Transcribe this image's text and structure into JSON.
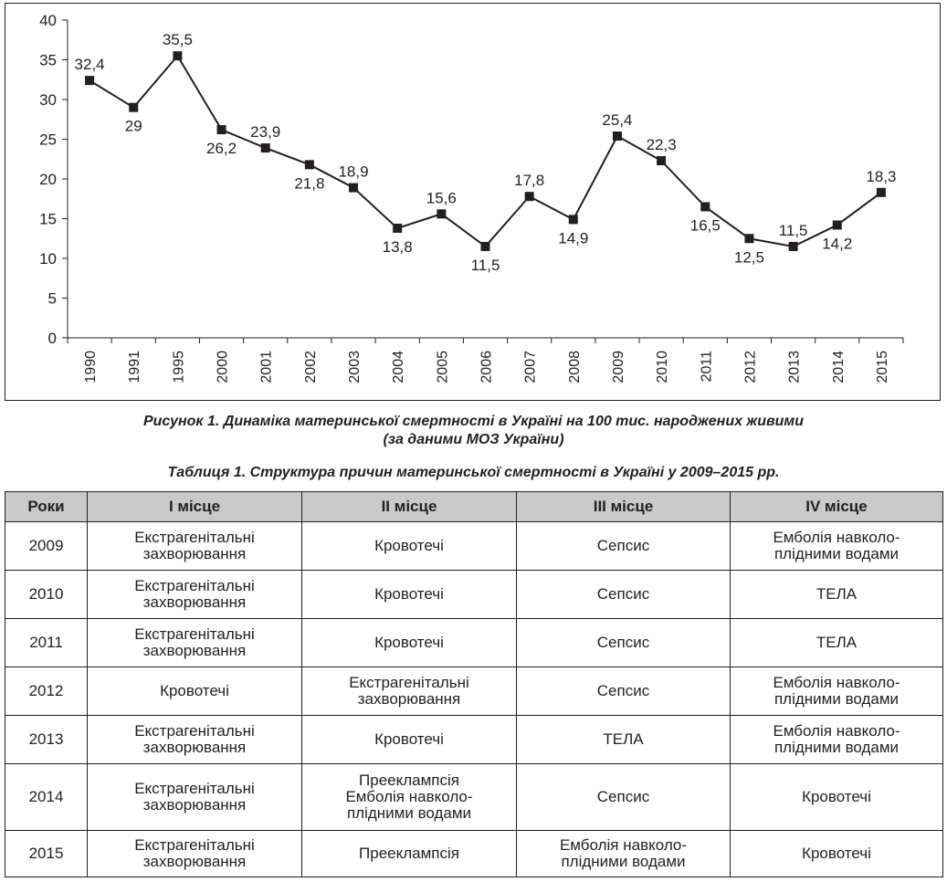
{
  "chart_data": {
    "type": "line",
    "categories": [
      "1990",
      "1991",
      "1995",
      "2000",
      "2001",
      "2002",
      "2003",
      "2004",
      "2005",
      "2006",
      "2007",
      "2008",
      "2009",
      "2010",
      "2011",
      "2012",
      "2013",
      "2014",
      "2015"
    ],
    "values": [
      32.4,
      29,
      35.5,
      26.2,
      23.9,
      21.8,
      18.9,
      13.8,
      15.6,
      11.5,
      17.8,
      14.9,
      25.4,
      22.3,
      16.5,
      12.5,
      11.5,
      14.2,
      18.3
    ],
    "data_labels": [
      "32,4",
      "29",
      "35,5",
      "26,2",
      "23,9",
      "21,8",
      "18,9",
      "13,8",
      "15,6",
      "11,5",
      "17,8",
      "14,9",
      "25,4",
      "22,3",
      "16,5",
      "12,5",
      "11,5",
      "14,2",
      "18,3"
    ],
    "label_position": [
      "above",
      "below",
      "above",
      "below",
      "above",
      "below",
      "above",
      "below",
      "above",
      "below",
      "above",
      "below",
      "above",
      "above",
      "below",
      "below",
      "above",
      "below",
      "above"
    ],
    "yticks": [
      "0",
      "5",
      "10",
      "15",
      "20",
      "25",
      "30",
      "35",
      "40"
    ],
    "ylim": [
      0,
      40
    ],
    "grid": false,
    "legend": "none",
    "title": "",
    "xlabel": "",
    "ylabel": "",
    "colors": {
      "line": "#231f20",
      "marker": "#231f20"
    }
  },
  "figure_caption": {
    "line1": "Рисунок 1.  Динаміка материнської смертності в Україні на 100 тис. народжених живими",
    "line2": "(за даними МОЗ України)"
  },
  "table": {
    "caption": "Таблиця 1.  Структура причин материнської смертності в Україні у 2009–2015 рр.",
    "header_color": "#c9c9c9",
    "headers": [
      "Роки",
      "І місце",
      "ІІ місце",
      "ІІІ місце",
      "IV місце"
    ],
    "rows": [
      {
        "cells": [
          [
            "2009"
          ],
          [
            "Екстрагенітальні",
            "захворювання"
          ],
          [
            "Кровотечі"
          ],
          [
            "Сепсис"
          ],
          [
            "Емболія навколо-",
            "плідними водами"
          ]
        ]
      },
      {
        "cells": [
          [
            "2010"
          ],
          [
            "Екстрагенітальні",
            "захворювання"
          ],
          [
            "Кровотечі"
          ],
          [
            "Сепсис"
          ],
          [
            "ТЕЛА"
          ]
        ]
      },
      {
        "cells": [
          [
            "2011"
          ],
          [
            "Екстрагенітальні",
            "захворювання"
          ],
          [
            "Кровотечі"
          ],
          [
            "Сепсис"
          ],
          [
            "ТЕЛА"
          ]
        ]
      },
      {
        "cells": [
          [
            "2012"
          ],
          [
            "Кровотечі"
          ],
          [
            "Екстрагенітальні",
            "захворювання"
          ],
          [
            "Сепсис"
          ],
          [
            "Емболія навколо-",
            "плідними водами"
          ]
        ]
      },
      {
        "cells": [
          [
            "2013"
          ],
          [
            "Екстрагенітальні",
            "захворювання"
          ],
          [
            "Кровотечі"
          ],
          [
            "ТЕЛА"
          ],
          [
            "Емболія навколо-",
            "плідними водами"
          ]
        ]
      },
      {
        "cells": [
          [
            "2014"
          ],
          [
            "Екстрагенітальні",
            "захворювання"
          ],
          [
            "Прееклампсія",
            "Емболія навколо-",
            "плідними водами"
          ],
          [
            "Сепсис"
          ],
          [
            "Кровотечі"
          ]
        ]
      },
      {
        "cells": [
          [
            "2015"
          ],
          [
            "Екстрагенітальні",
            "захворювання"
          ],
          [
            "Прееклампсія"
          ],
          [
            "Емболія навколо-",
            "плідними водами"
          ],
          [
            "Кровотечі"
          ]
        ]
      }
    ]
  }
}
